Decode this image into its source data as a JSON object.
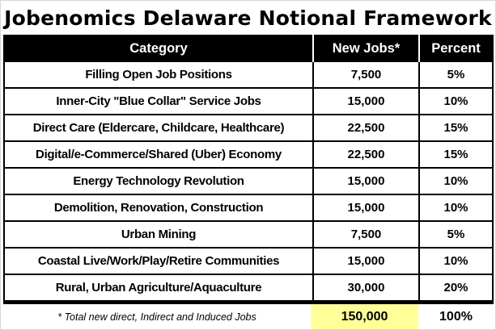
{
  "page": {
    "title": "Jobenomics Delaware Notional Framework"
  },
  "table": {
    "headers": {
      "category": "Category",
      "new_jobs": "New Jobs*",
      "percent": "Percent"
    },
    "rows": [
      {
        "category": "Filling Open Job Positions",
        "new_jobs": "7,500",
        "percent": "5%"
      },
      {
        "category": "Inner-City \"Blue Collar\" Service Jobs",
        "new_jobs": "15,000",
        "percent": "10%"
      },
      {
        "category": "Direct Care (Eldercare, Childcare, Healthcare)",
        "new_jobs": "22,500",
        "percent": "15%"
      },
      {
        "category": "Digital/e-Commerce/Shared (Uber) Economy",
        "new_jobs": "22,500",
        "percent": "15%"
      },
      {
        "category": "Energy Technology Revolution",
        "new_jobs": "15,000",
        "percent": "10%"
      },
      {
        "category": "Demolition, Renovation, Construction",
        "new_jobs": "15,000",
        "percent": "10%"
      },
      {
        "category": "Urban Mining",
        "new_jobs": "7,500",
        "percent": "5%"
      },
      {
        "category": "Coastal Live/Work/Play/Retire Communities",
        "new_jobs": "15,000",
        "percent": "10%"
      },
      {
        "category": "Rural, Urban Agriculture/Aquaculture",
        "new_jobs": "30,000",
        "percent": "20%"
      }
    ],
    "footer": {
      "note": "* Total new direct, Indirect and Induced Jobs",
      "total_new_jobs": "150,000",
      "total_percent": "100%"
    }
  },
  "colors": {
    "header_bg": "#000000",
    "header_text": "#ffffff",
    "total_highlight": "#ffff99",
    "table_border": "#000000",
    "page_border": "#d7d7d7"
  },
  "chart_data": {
    "type": "table",
    "title": "Jobenomics Delaware Notional Framework",
    "columns": [
      "Category",
      "New Jobs*",
      "Percent"
    ],
    "rows": [
      {
        "category": "Filling Open Job Positions",
        "new_jobs": 7500,
        "percent_pct": 5
      },
      {
        "category": "Inner-City \"Blue Collar\" Service Jobs",
        "new_jobs": 15000,
        "percent_pct": 10
      },
      {
        "category": "Direct Care (Eldercare, Childcare, Healthcare)",
        "new_jobs": 22500,
        "percent_pct": 15
      },
      {
        "category": "Digital/e-Commerce/Shared (Uber) Economy",
        "new_jobs": 22500,
        "percent_pct": 15
      },
      {
        "category": "Energy Technology Revolution",
        "new_jobs": 15000,
        "percent_pct": 10
      },
      {
        "category": "Demolition, Renovation, Construction",
        "new_jobs": 15000,
        "percent_pct": 10
      },
      {
        "category": "Urban Mining",
        "new_jobs": 7500,
        "percent_pct": 5
      },
      {
        "category": "Coastal Live/Work/Play/Retire Communities",
        "new_jobs": 15000,
        "percent_pct": 10
      },
      {
        "category": "Rural, Urban Agriculture/Aquaculture",
        "new_jobs": 30000,
        "percent_pct": 20
      }
    ],
    "total": {
      "new_jobs": 150000,
      "percent_pct": 100
    },
    "footnote": "* Total new direct, Indirect and Induced Jobs",
    "layout": {
      "header_style": "black-bar-white-text",
      "total_cell_highlight": "#ffff99",
      "grid": "on"
    }
  }
}
